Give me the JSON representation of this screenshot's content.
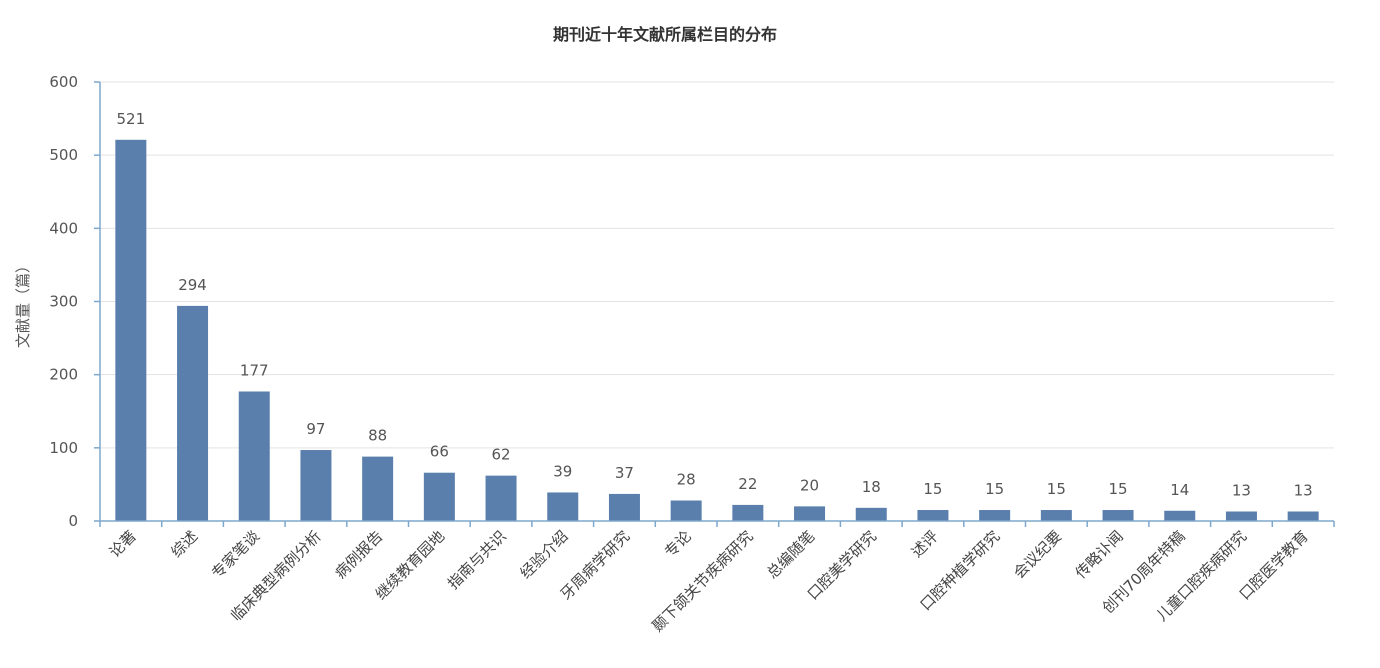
{
  "chart_data": {
    "type": "bar",
    "title": "期刊近十年文献所属栏目的分布",
    "xlabel": "",
    "ylabel": "文献量（篇）",
    "ylim": [
      0,
      600
    ],
    "yticks": [
      0,
      100,
      200,
      300,
      400,
      500,
      600
    ],
    "grid": true,
    "legend": "none",
    "bar_color": "#5b7fad",
    "categories": [
      "论著",
      "综述",
      "专家笔谈",
      "临床典型病例分析",
      "病例报告",
      "继续教育园地",
      "指南与共识",
      "经验介绍",
      "牙周病学研究",
      "专论",
      "颞下颌关节疾病研究",
      "总编随笔",
      "口腔美学研究",
      "述评",
      "口腔种植学研究",
      "会议纪要",
      "传略讣闻",
      "创刊70周年特稿",
      "儿童口腔疾病研究",
      "口腔医学教育"
    ],
    "values": [
      521,
      294,
      177,
      97,
      88,
      66,
      62,
      39,
      37,
      28,
      22,
      20,
      18,
      15,
      15,
      15,
      15,
      14,
      13,
      13
    ]
  }
}
